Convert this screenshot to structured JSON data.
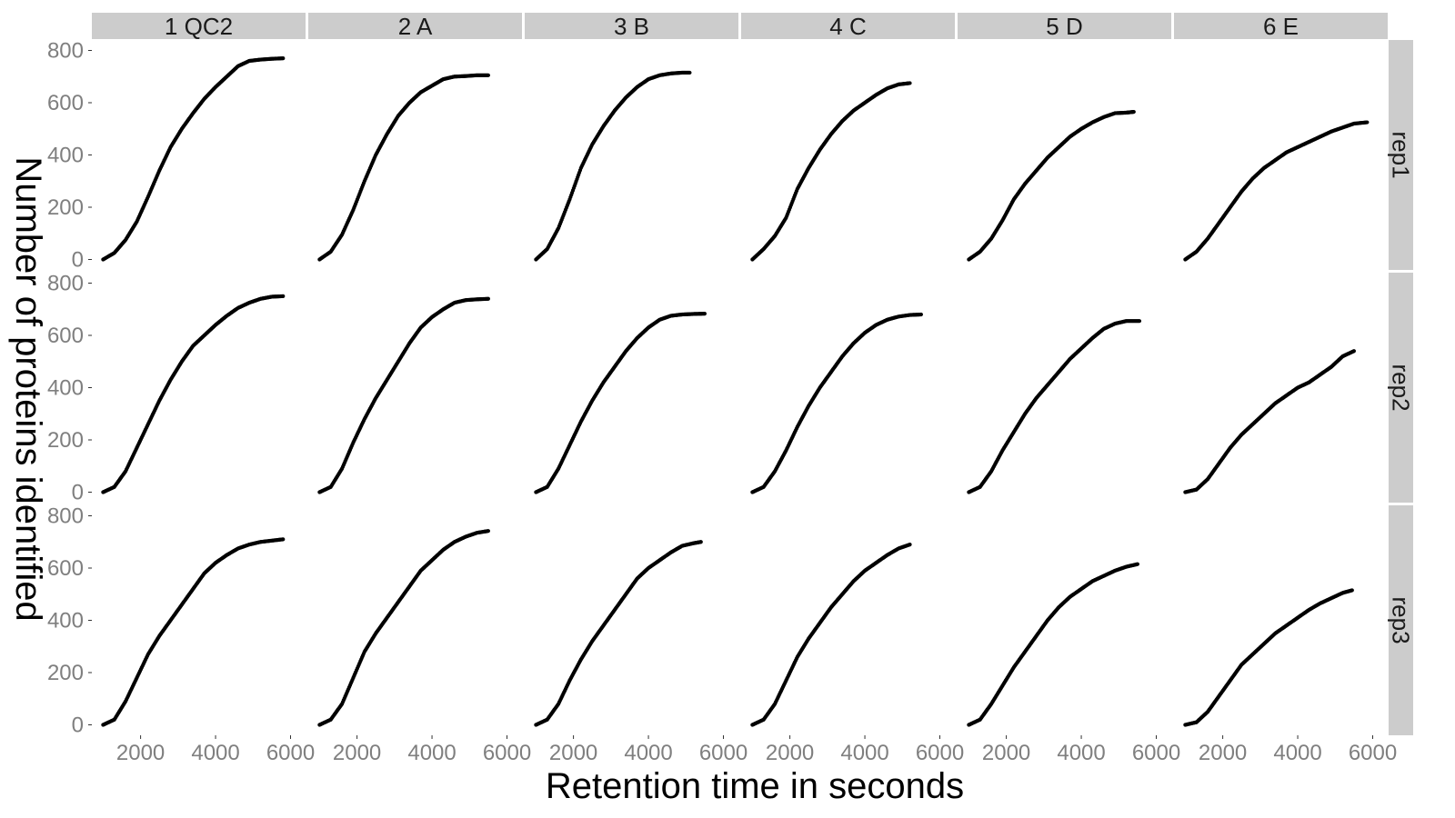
{
  "chart_data": {
    "type": "scatter",
    "facet_layout": "grid",
    "xlabel": "Retention time in seconds",
    "ylabel": "Number of proteins identified",
    "columns": [
      "1  QC2",
      "2  A",
      "3  B",
      "4  C",
      "5  D",
      "6  E"
    ],
    "rows": [
      "rep1",
      "rep2",
      "rep3"
    ],
    "xlim": [
      700,
      6400
    ],
    "ylim": [
      -40,
      840
    ],
    "x_ticks": [
      2000,
      4000,
      6000
    ],
    "y_ticks": [
      0,
      200,
      400,
      600,
      800
    ],
    "grid": false,
    "point_color": "#000000",
    "strip_color": "#cccccc",
    "panels": [
      {
        "column": "1  QC2",
        "row": "rep1",
        "x": [
          1000,
          1300,
          1600,
          1900,
          2200,
          2500,
          2800,
          3100,
          3400,
          3700,
          4000,
          4300,
          4600,
          4900,
          5200,
          5500,
          5800
        ],
        "y": [
          0,
          25,
          75,
          145,
          240,
          340,
          430,
          500,
          560,
          615,
          660,
          700,
          740,
          760,
          765,
          768,
          770
        ]
      },
      {
        "column": "2  A",
        "row": "rep1",
        "x": [
          1000,
          1300,
          1600,
          1900,
          2200,
          2500,
          2800,
          3100,
          3400,
          3700,
          4000,
          4300,
          4600,
          4900,
          5200,
          5500
        ],
        "y": [
          0,
          30,
          95,
          190,
          300,
          400,
          480,
          550,
          600,
          640,
          665,
          690,
          700,
          702,
          705,
          705
        ]
      },
      {
        "column": "3  B",
        "row": "rep1",
        "x": [
          1000,
          1300,
          1600,
          1900,
          2200,
          2500,
          2800,
          3100,
          3400,
          3700,
          4000,
          4300,
          4600,
          4900,
          5100
        ],
        "y": [
          0,
          40,
          120,
          230,
          350,
          440,
          510,
          570,
          620,
          660,
          690,
          705,
          712,
          715,
          715
        ]
      },
      {
        "column": "4  C",
        "row": "rep1",
        "x": [
          1000,
          1300,
          1600,
          1900,
          2200,
          2500,
          2800,
          3100,
          3400,
          3700,
          4000,
          4300,
          4600,
          4900,
          5200
        ],
        "y": [
          0,
          40,
          90,
          160,
          270,
          350,
          420,
          480,
          530,
          570,
          600,
          630,
          655,
          670,
          675
        ]
      },
      {
        "column": "5  D",
        "row": "rep1",
        "x": [
          1000,
          1300,
          1600,
          1900,
          2200,
          2500,
          2800,
          3100,
          3400,
          3700,
          4000,
          4300,
          4600,
          4900,
          5200,
          5400
        ],
        "y": [
          0,
          30,
          80,
          150,
          230,
          290,
          340,
          390,
          430,
          470,
          500,
          525,
          545,
          560,
          562,
          565
        ]
      },
      {
        "column": "6  E",
        "row": "rep1",
        "x": [
          1000,
          1300,
          1600,
          1900,
          2200,
          2500,
          2800,
          3100,
          3400,
          3700,
          4000,
          4300,
          4600,
          4900,
          5200,
          5500,
          5850
        ],
        "y": [
          0,
          30,
          80,
          140,
          200,
          260,
          310,
          350,
          380,
          410,
          430,
          450,
          470,
          490,
          505,
          520,
          525
        ]
      },
      {
        "column": "1  QC2",
        "row": "rep2",
        "x": [
          1000,
          1300,
          1600,
          1900,
          2200,
          2500,
          2800,
          3100,
          3400,
          3700,
          4000,
          4300,
          4600,
          4900,
          5200,
          5500,
          5800
        ],
        "y": [
          0,
          20,
          80,
          170,
          260,
          350,
          430,
          500,
          560,
          600,
          640,
          675,
          705,
          725,
          740,
          748,
          750
        ]
      },
      {
        "column": "2  A",
        "row": "rep2",
        "x": [
          1000,
          1300,
          1600,
          1900,
          2200,
          2500,
          2800,
          3100,
          3400,
          3700,
          4000,
          4300,
          4600,
          4900,
          5200,
          5500
        ],
        "y": [
          0,
          20,
          90,
          190,
          280,
          360,
          430,
          500,
          570,
          630,
          670,
          700,
          725,
          735,
          738,
          740
        ]
      },
      {
        "column": "3  B",
        "row": "rep2",
        "x": [
          1000,
          1300,
          1600,
          1900,
          2200,
          2500,
          2800,
          3100,
          3400,
          3700,
          4000,
          4300,
          4600,
          4900,
          5200,
          5500
        ],
        "y": [
          0,
          20,
          90,
          180,
          270,
          350,
          420,
          480,
          540,
          590,
          630,
          660,
          675,
          680,
          682,
          683
        ]
      },
      {
        "column": "4  C",
        "row": "rep2",
        "x": [
          1000,
          1300,
          1600,
          1900,
          2200,
          2500,
          2800,
          3100,
          3400,
          3700,
          4000,
          4300,
          4600,
          4900,
          5200,
          5500
        ],
        "y": [
          0,
          20,
          80,
          160,
          250,
          330,
          400,
          460,
          520,
          570,
          610,
          640,
          660,
          672,
          678,
          680
        ]
      },
      {
        "column": "5  D",
        "row": "rep2",
        "x": [
          1000,
          1300,
          1600,
          1900,
          2200,
          2500,
          2800,
          3100,
          3400,
          3700,
          4000,
          4300,
          4600,
          4900,
          5200,
          5550
        ],
        "y": [
          0,
          20,
          80,
          160,
          230,
          300,
          360,
          410,
          460,
          510,
          550,
          590,
          625,
          645,
          655,
          655
        ]
      },
      {
        "column": "6  E",
        "row": "rep2",
        "x": [
          1000,
          1300,
          1600,
          1900,
          2200,
          2500,
          2800,
          3100,
          3400,
          3700,
          4000,
          4300,
          4600,
          4900,
          5200,
          5500
        ],
        "y": [
          0,
          10,
          50,
          110,
          170,
          220,
          260,
          300,
          340,
          370,
          400,
          420,
          450,
          480,
          520,
          540
        ]
      },
      {
        "column": "1  QC2",
        "row": "rep3",
        "x": [
          1000,
          1300,
          1600,
          1900,
          2200,
          2500,
          2800,
          3100,
          3400,
          3700,
          4000,
          4300,
          4600,
          4900,
          5200,
          5500,
          5800
        ],
        "y": [
          0,
          20,
          90,
          180,
          270,
          340,
          400,
          460,
          520,
          580,
          620,
          650,
          675,
          690,
          700,
          705,
          710
        ]
      },
      {
        "column": "2  A",
        "row": "rep3",
        "x": [
          1000,
          1300,
          1600,
          1900,
          2200,
          2500,
          2800,
          3100,
          3400,
          3700,
          4000,
          4300,
          4600,
          4900,
          5200,
          5500
        ],
        "y": [
          0,
          20,
          80,
          180,
          280,
          350,
          410,
          470,
          530,
          590,
          630,
          670,
          700,
          720,
          735,
          742
        ]
      },
      {
        "column": "3  B",
        "row": "rep3",
        "x": [
          1000,
          1300,
          1600,
          1900,
          2200,
          2500,
          2800,
          3100,
          3400,
          3700,
          4000,
          4300,
          4600,
          4900,
          5200,
          5400
        ],
        "y": [
          0,
          20,
          80,
          170,
          250,
          320,
          380,
          440,
          500,
          560,
          600,
          630,
          660,
          685,
          695,
          700
        ]
      },
      {
        "column": "4  C",
        "row": "rep3",
        "x": [
          1000,
          1300,
          1600,
          1900,
          2200,
          2500,
          2800,
          3100,
          3400,
          3700,
          4000,
          4300,
          4600,
          4900,
          5200
        ],
        "y": [
          0,
          20,
          80,
          170,
          260,
          330,
          390,
          450,
          500,
          550,
          590,
          620,
          650,
          675,
          690
        ]
      },
      {
        "column": "5  D",
        "row": "rep3",
        "x": [
          1000,
          1300,
          1600,
          1900,
          2200,
          2500,
          2800,
          3100,
          3400,
          3700,
          4000,
          4300,
          4600,
          4900,
          5200,
          5500
        ],
        "y": [
          0,
          20,
          80,
          150,
          220,
          280,
          340,
          400,
          450,
          490,
          520,
          550,
          570,
          590,
          605,
          615
        ]
      },
      {
        "column": "6  E",
        "row": "rep3",
        "x": [
          1000,
          1300,
          1600,
          1900,
          2200,
          2500,
          2800,
          3100,
          3400,
          3700,
          4000,
          4300,
          4600,
          4900,
          5200,
          5450
        ],
        "y": [
          0,
          10,
          50,
          110,
          170,
          230,
          270,
          310,
          350,
          380,
          410,
          440,
          465,
          485,
          505,
          515
        ]
      }
    ]
  }
}
